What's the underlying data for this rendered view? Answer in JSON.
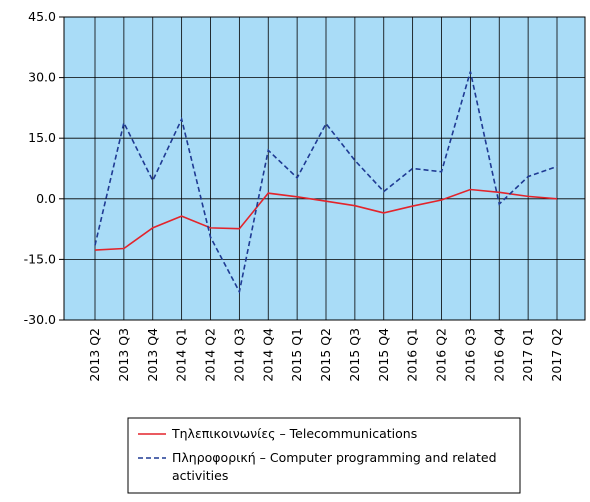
{
  "chart_data": {
    "type": "line",
    "categories": [
      "2013 Q2",
      "2013 Q3",
      "2013 Q4",
      "2014 Q1",
      "2014 Q2",
      "2014 Q3",
      "2014 Q4",
      "2015 Q1",
      "2015 Q2",
      "2015 Q3",
      "2015 Q4",
      "2016 Q1",
      "2016 Q2",
      "2016 Q3",
      "2016 Q4",
      "2017 Q1",
      "2017 Q2"
    ],
    "series": [
      {
        "name": "Τηλεπικοινωνίες – Telecommunications",
        "color": "#e3242b",
        "dash": false,
        "values": [
          -12.7,
          -12.3,
          -7.2,
          -4.3,
          -7.2,
          -7.4,
          1.4,
          0.5,
          -0.6,
          -1.7,
          -3.5,
          -1.8,
          -0.3,
          2.3,
          1.6,
          0.6,
          0.0
        ]
      },
      {
        "name": "Πληροφορική – Computer programming and related activities",
        "color": "#1f3a93",
        "dash": true,
        "values": [
          -11.5,
          18.8,
          4.5,
          19.7,
          -9.5,
          -23.0,
          12.0,
          5.2,
          18.6,
          9.5,
          1.8,
          7.5,
          6.7,
          31.5,
          -1.3,
          5.5,
          8.0
        ]
      }
    ],
    "ylim": [
      -30,
      45
    ],
    "yticks": [
      {
        "value": -30,
        "label": "-30.0"
      },
      {
        "value": -15,
        "label": "-15.0"
      },
      {
        "value": 0,
        "label": "0.0"
      },
      {
        "value": 15,
        "label": "15.0"
      },
      {
        "value": 30,
        "label": "30.0"
      },
      {
        "value": 45,
        "label": "45.0"
      }
    ],
    "grid": true,
    "background": "#a9dcf7"
  }
}
